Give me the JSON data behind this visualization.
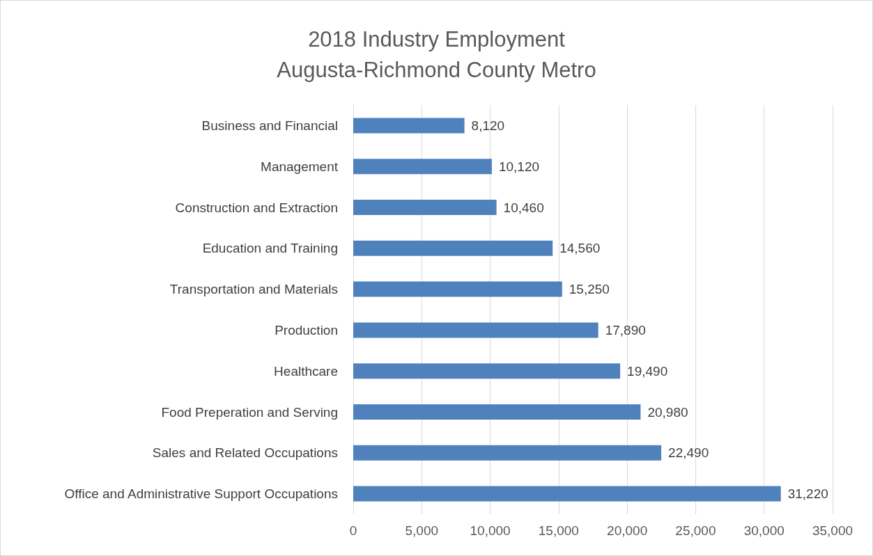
{
  "chart_data": {
    "type": "bar",
    "orientation": "horizontal",
    "title": "2018 Industry Employment\nAugusta-Richmond County Metro",
    "categories": [
      "Business and Financial",
      "Management",
      "Construction and Extraction",
      "Education and Training",
      "Transportation and Materials",
      "Production",
      "Healthcare",
      "Food Preperation and Serving",
      "Sales and Related Occupations",
      "Office and Administrative Support Occupations"
    ],
    "values": [
      8120,
      10120,
      10460,
      14560,
      15250,
      17890,
      19490,
      20980,
      22490,
      31220
    ],
    "value_labels": [
      "8,120",
      "10,120",
      "10,460",
      "14,560",
      "15,250",
      "17,890",
      "19,490",
      "20,980",
      "22,490",
      "31,220"
    ],
    "color": "#4f81bd",
    "xlim": [
      0,
      35000
    ],
    "xticks": [
      0,
      {
        "value": 5000,
        "label": "5,000"
      },
      {
        "value": 10000,
        "label": "10,000"
      },
      {
        "value": 15000,
        "label": "15,000"
      },
      {
        "value": 20000,
        "label": "20,000"
      },
      {
        "value": 25000,
        "label": "25,000"
      },
      {
        "value": 30000,
        "label": "30,000"
      },
      {
        "value": 35000,
        "label": "35,000"
      }
    ],
    "grid": "x"
  }
}
